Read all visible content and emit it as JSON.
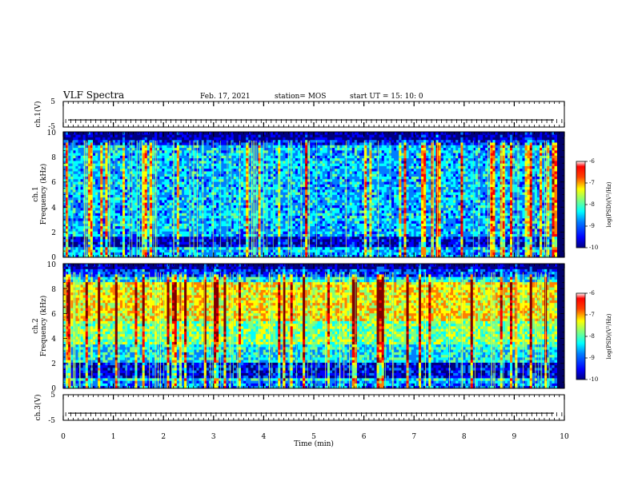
{
  "header": {
    "title": "VLF Spectra",
    "date": "Feb. 17, 2021",
    "station": "station= MOS",
    "start_ut": "start UT =  15: 10: 0"
  },
  "chart_data": [
    {
      "type": "line",
      "panel": "ch1",
      "ylabel": "ch.1(V)",
      "ylim": [
        -5,
        5
      ],
      "yticks": [
        "5",
        "-5"
      ],
      "trace_level": -2.2
    },
    {
      "type": "heatmap",
      "panel": "ch1-spectrogram",
      "ylabel": [
        "ch.1",
        "Frequency (kHz)"
      ],
      "ylim": [
        0,
        10
      ],
      "yticks": [
        "0",
        "2",
        "4",
        "6",
        "8",
        "10"
      ],
      "colorbar": {
        "label": "log(PSD)(V²/Hz)",
        "range": [
          -10,
          -6
        ],
        "ticks": [
          "-6",
          "-7",
          "-8",
          "-9",
          "-10"
        ]
      }
    },
    {
      "type": "heatmap",
      "panel": "ch2-spectrogram",
      "ylabel": [
        "ch.2",
        "Frequency (kHz)"
      ],
      "ylim": [
        0,
        10
      ],
      "yticks": [
        "0",
        "2",
        "4",
        "6",
        "8",
        "10"
      ],
      "colorbar": {
        "label": "log(PSD)(V²/Hz)",
        "range": [
          -10,
          -6
        ],
        "ticks": [
          "-6",
          "-7",
          "-8",
          "-9",
          "-10"
        ]
      }
    },
    {
      "type": "line",
      "panel": "ch3",
      "ylabel": "ch.3(V)",
      "ylim": [
        -5,
        5
      ],
      "yticks": [
        "5",
        "-5"
      ],
      "trace_level": -2.2
    }
  ],
  "xaxis": {
    "label": "Time (min)",
    "ticks": [
      "0",
      "1",
      "2",
      "3",
      "4",
      "5",
      "6",
      "7",
      "8",
      "9",
      "10"
    ],
    "range": [
      0,
      10
    ]
  },
  "colors": {
    "jet": [
      "#00007f",
      "#0000ff",
      "#007fff",
      "#00ffff",
      "#7fff7f",
      "#ffff00",
      "#ff7f00",
      "#ff0000",
      "#7f0000"
    ]
  }
}
